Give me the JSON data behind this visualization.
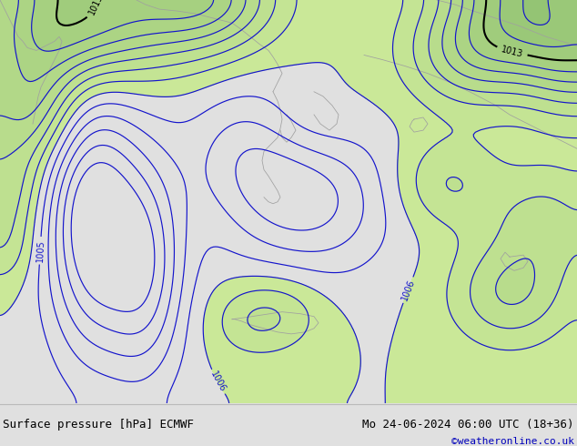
{
  "title_left": "Surface pressure [hPa] ECMWF",
  "title_right": "Mo 24-06-2024 06:00 UTC (18+36)",
  "copyright": "©weatheronline.co.uk",
  "fig_bg": "#e0e0e0",
  "sea_color": "#e8e8e8",
  "green_fill_colors": [
    "#c8e8a0",
    "#c2e49a",
    "#bce094",
    "#b6dc8e",
    "#b0d888"
  ],
  "blue_contour": "#1414cc",
  "black_contour": "#000000",
  "gray_coast": "#a0a0a0",
  "copyright_color": "#0000bb",
  "text_fontsize": 9,
  "label_fontsize": 7,
  "figsize": [
    6.34,
    4.9
  ],
  "dpi": 100
}
